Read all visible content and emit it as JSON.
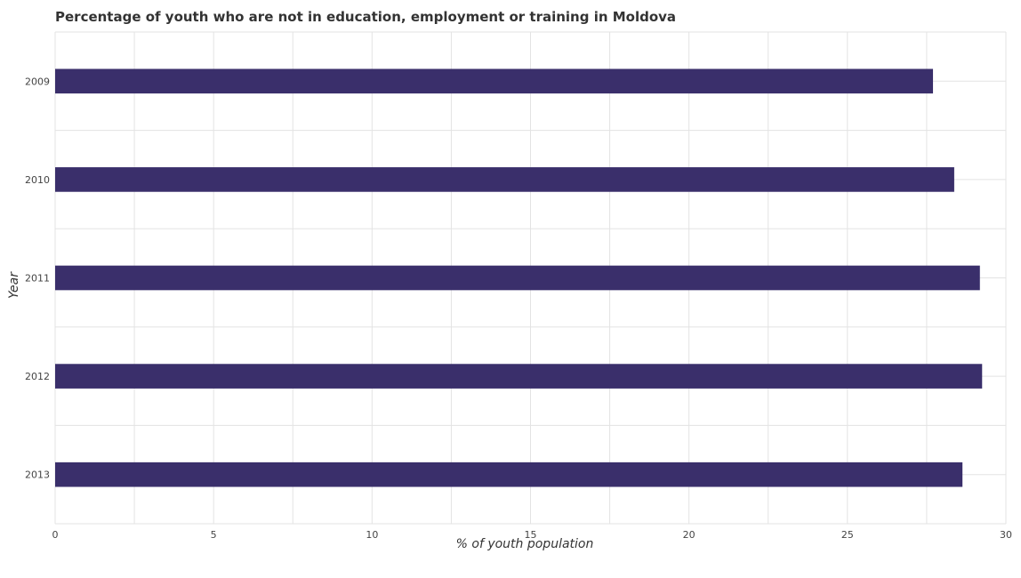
{
  "chart_data": {
    "type": "bar",
    "orientation": "horizontal",
    "title": "Percentage of youth who are not in education, employment or training in Moldova",
    "xlabel": "% of youth population",
    "ylabel": "Year",
    "categories": [
      "2009",
      "2010",
      "2011",
      "2012",
      "2013"
    ],
    "values": [
      27.7,
      28.37,
      29.18,
      29.25,
      28.63
    ],
    "xlim": [
      0,
      30
    ],
    "xticks": [
      "0",
      "5",
      "10",
      "15",
      "20",
      "25",
      "30"
    ],
    "grid": true,
    "bar_color": "#3a2f6b"
  }
}
